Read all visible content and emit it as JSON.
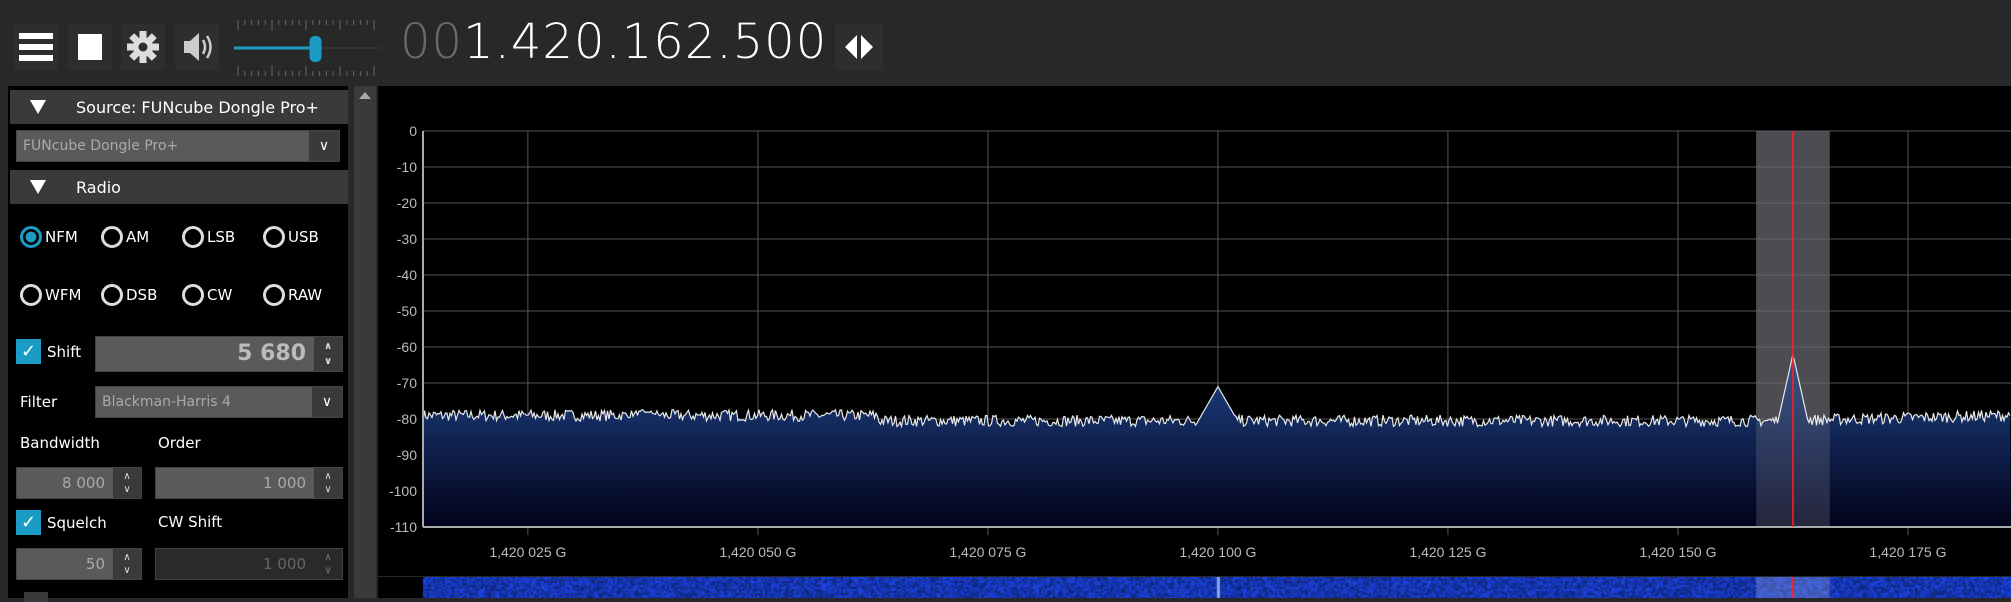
{
  "toolbar": {
    "icons": [
      "menu-icon",
      "stop-icon",
      "gear-icon",
      "speaker-icon"
    ],
    "volume_percent": 57,
    "frequency_dim": "00",
    "frequency": "1.420.162.500"
  },
  "source": {
    "header": "Source: FUNcube Dongle Pro+",
    "device": "FUNcube Dongle Pro+"
  },
  "radio": {
    "header": "Radio",
    "modes": [
      "NFM",
      "AM",
      "LSB",
      "USB",
      "WFM",
      "DSB",
      "CW",
      "RAW"
    ],
    "selected_mode": "NFM",
    "shift_label": "Shift",
    "shift_checked": true,
    "shift_value": "5 680",
    "filter_label": "Filter",
    "filter_value": "Blackman-Harris 4",
    "bandwidth_label": "Bandwidth",
    "bandwidth_value": "8 000",
    "order_label": "Order",
    "order_value": "1 000",
    "squelch_label": "Squelch",
    "squelch_checked": true,
    "squelch_value": "50",
    "cwshift_label": "CW Shift",
    "cwshift_value": "1 000"
  },
  "colors": {
    "accent": "#1a9cc4",
    "marker": "#ff2020",
    "spectrum_fill": "#1a3a7a"
  },
  "chart_data": {
    "type": "area",
    "xlabel": "",
    "ylabel": "",
    "y_ticks": [
      "0",
      "-10",
      "-20",
      "-30",
      "-40",
      "-50",
      "-60",
      "-70",
      "-80",
      "-90",
      "-100",
      "-110"
    ],
    "ylim": [
      -110,
      0
    ],
    "x_ticks": [
      "1,420 025 G",
      "1,420 050 G",
      "1,420 075 G",
      "1,420 100 G",
      "1,420 125 G",
      "1,420 150 G",
      "1,420 175 G"
    ],
    "x_tick_values_khz": [
      1420025,
      1420050,
      1420075,
      1420100,
      1420125,
      1420150,
      1420175
    ],
    "xlim_khz": [
      1420013.6,
      1420186.2
    ],
    "noise_floor_db": -80.5,
    "peaks": [
      {
        "freq_khz": 1420038,
        "db": -78
      },
      {
        "freq_khz": 1420100,
        "db": -71
      },
      {
        "freq_khz": 1420162.5,
        "db": -62
      }
    ],
    "tuned_khz": 1420162.5,
    "filter_band_khz": [
      1420158.5,
      1420166.5
    ],
    "grid": true
  }
}
